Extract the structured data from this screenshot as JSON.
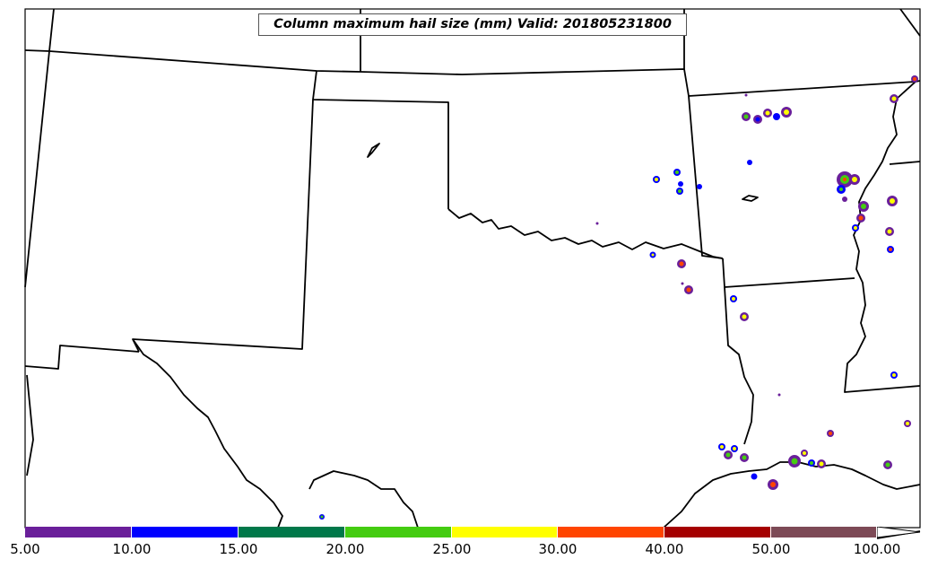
{
  "title": "Column maximum hail size (mm) Valid: 201805231800",
  "colorbar": {
    "segments": [
      {
        "from": "5.00",
        "to": "10.00",
        "color": "#6a1f9a"
      },
      {
        "from": "10.00",
        "to": "15.00",
        "color": "#0000ff"
      },
      {
        "from": "15.00",
        "to": "20.00",
        "color": "#00784a"
      },
      {
        "from": "20.00",
        "to": "25.00",
        "color": "#44cc11"
      },
      {
        "from": "25.00",
        "to": "30.00",
        "color": "#ffff00"
      },
      {
        "from": "30.00",
        "to": "40.00",
        "color": "#ff4500"
      },
      {
        "from": "40.00",
        "to": "50.00",
        "color": "#a50000"
      },
      {
        "from": "50.00",
        "to": "100.00",
        "color": "#7d4a56"
      }
    ],
    "labels": [
      "5.00",
      "10.00",
      "15.00",
      "20.00",
      "25.00",
      "30.00",
      "40.00",
      "50.00",
      "100.00"
    ]
  }
}
